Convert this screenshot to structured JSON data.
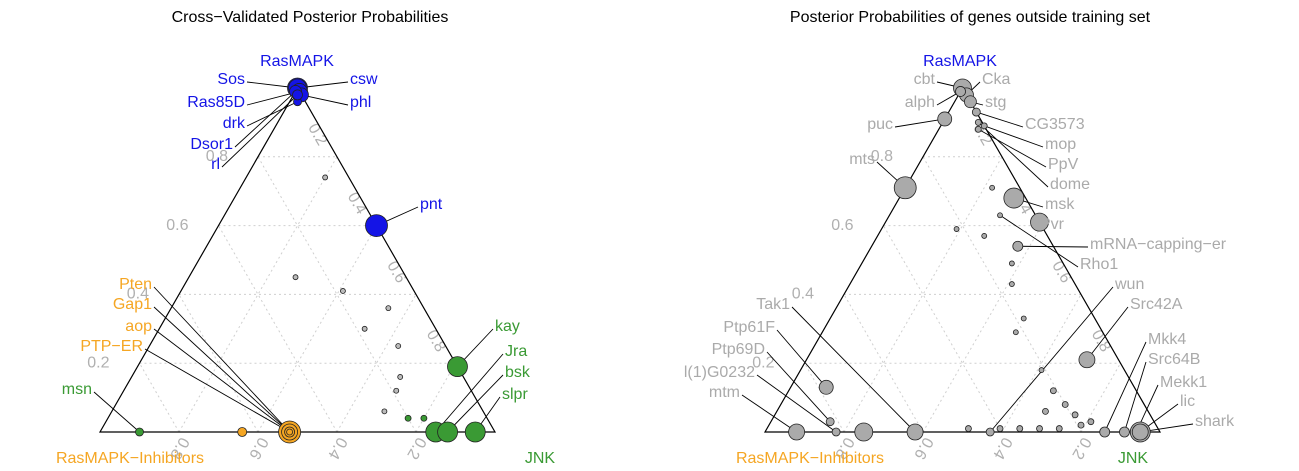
{
  "chart_data": [
    {
      "type": "ternary",
      "title": "Cross−Validated Posterior Probabilities",
      "vertices": [
        {
          "label": "RasMAPK",
          "color": "#1414e6"
        },
        {
          "label": "RasMAPK−Inhibitors",
          "color": "#f5a623"
        },
        {
          "label": "JNK",
          "color": "#3a9a34"
        }
      ],
      "ticks": [
        0.2,
        0.4,
        0.6,
        0.8
      ],
      "grid": true,
      "points": [
        {
          "label": "Sos",
          "a": 1,
          "b": 0,
          "c": 0,
          "size": 10,
          "color": "#1414e6"
        },
        {
          "label": "csw",
          "a": 1,
          "b": 0,
          "c": 0,
          "size": 9,
          "color": "#1414e6"
        },
        {
          "label": "Ras85D",
          "a": 0.99,
          "b": 0,
          "c": 0.01,
          "size": 8,
          "color": "#1414e6"
        },
        {
          "label": "phl",
          "a": 0.98,
          "b": 0,
          "c": 0.02,
          "size": 7,
          "color": "#1414e6"
        },
        {
          "label": "drk",
          "a": 0.96,
          "b": 0.02,
          "c": 0.02,
          "size": 4,
          "color": "#1414e6"
        },
        {
          "label": "Dsor1",
          "a": 0.99,
          "b": 0.01,
          "c": 0,
          "size": 6,
          "color": "#1414e6"
        },
        {
          "label": "rl",
          "a": 0.98,
          "b": 0.01,
          "c": 0.01,
          "size": 5,
          "color": "#1414e6"
        },
        {
          "label": "pnt",
          "a": 0.6,
          "b": 0,
          "c": 0.4,
          "size": 11,
          "color": "#1414e6"
        },
        {
          "label": "kay",
          "a": 0.19,
          "b": 0,
          "c": 0.81,
          "size": 10,
          "color": "#3a9a34"
        },
        {
          "label": "Jra",
          "a": 0,
          "b": 0.15,
          "c": 0.85,
          "size": 10,
          "color": "#3a9a34"
        },
        {
          "label": "bsk",
          "a": 0,
          "b": 0.12,
          "c": 0.88,
          "size": 10,
          "color": "#3a9a34"
        },
        {
          "label": "slpr",
          "a": 0,
          "b": 0.05,
          "c": 0.95,
          "size": 10,
          "color": "#3a9a34"
        },
        {
          "label": "msn",
          "a": 0,
          "b": 0.9,
          "c": 0.1,
          "size": 4,
          "color": "#3a9a34"
        },
        {
          "label": "Pten",
          "a": 0,
          "b": 0.52,
          "c": 0.48,
          "size": 11,
          "color": "#f5a623"
        },
        {
          "label": "Gap1",
          "a": 0,
          "b": 0.52,
          "c": 0.48,
          "size": 8,
          "color": "#f5a623"
        },
        {
          "label": "aop",
          "a": 0,
          "b": 0.52,
          "c": 0.48,
          "size": 5,
          "color": "#f5a623"
        },
        {
          "label": "PTP−ER",
          "a": 0,
          "b": 0.52,
          "c": 0.48,
          "size": 3,
          "color": "#f5a623"
        },
        {
          "a": 0,
          "b": 0.64,
          "c": 0.36,
          "size": 4.5,
          "color": "#f5a623"
        },
        {
          "a": 0.74,
          "b": 0.06,
          "c": 0.2,
          "size": 2.5,
          "color": "#bbbbbb"
        },
        {
          "a": 0.45,
          "b": 0.28,
          "c": 0.27,
          "size": 2.5,
          "color": "#bbbbbb"
        },
        {
          "a": 0.41,
          "b": 0.18,
          "c": 0.41,
          "size": 2.5,
          "color": "#bbbbbb"
        },
        {
          "a": 0.36,
          "b": 0.09,
          "c": 0.55,
          "size": 2.5,
          "color": "#bbbbbb"
        },
        {
          "a": 0.3,
          "b": 0.18,
          "c": 0.52,
          "size": 2.5,
          "color": "#bbbbbb"
        },
        {
          "a": 0.25,
          "b": 0.12,
          "c": 0.63,
          "size": 2.5,
          "color": "#bbbbbb"
        },
        {
          "a": 0.16,
          "b": 0.16,
          "c": 0.68,
          "size": 2.5,
          "color": "#bbbbbb"
        },
        {
          "a": 0.12,
          "b": 0.19,
          "c": 0.69,
          "size": 2.5,
          "color": "#bbbbbb"
        },
        {
          "a": 0.06,
          "b": 0.25,
          "c": 0.69,
          "size": 2.5,
          "color": "#bbbbbb"
        },
        {
          "a": 0.04,
          "b": 0.2,
          "c": 0.76,
          "size": 3,
          "color": "#3a9a34"
        },
        {
          "a": 0.04,
          "b": 0.16,
          "c": 0.8,
          "size": 3,
          "color": "#3a9a34"
        }
      ]
    },
    {
      "type": "ternary",
      "title": "Posterior Probabilities of genes outside training set",
      "vertices": [
        {
          "label": "RasMAPK",
          "color": "#1414e6"
        },
        {
          "label": "RasMAPK−Inhibitors",
          "color": "#f5a623"
        },
        {
          "label": "JNK",
          "color": "#3a9a34"
        }
      ],
      "ticks": [
        0.2,
        0.4,
        0.6,
        0.8
      ],
      "grid": true,
      "points": [
        {
          "label": "cbt",
          "a": 1,
          "b": 0,
          "c": 0,
          "size": 9,
          "color": "#aaaaaa"
        },
        {
          "label": "Cka",
          "a": 0.98,
          "b": 0,
          "c": 0.02,
          "size": 7,
          "color": "#aaaaaa"
        },
        {
          "label": "alph",
          "a": 0.99,
          "b": 0.01,
          "c": 0,
          "size": 5,
          "color": "#aaaaaa"
        },
        {
          "label": "stg",
          "a": 0.96,
          "b": 0,
          "c": 0.04,
          "size": 6,
          "color": "#aaaaaa"
        },
        {
          "label": "puc",
          "a": 0.91,
          "b": 0.09,
          "c": 0,
          "size": 7,
          "color": "#aaaaaa"
        },
        {
          "label": "CG3573",
          "a": 0.93,
          "b": 0,
          "c": 0.07,
          "size": 4,
          "color": "#aaaaaa"
        },
        {
          "label": "mop",
          "a": 0.89,
          "b": 0,
          "c": 0.11,
          "size": 3,
          "color": "#aaaaaa"
        },
        {
          "label": "PpV",
          "a": 0.88,
          "b": 0.02,
          "c": 0.1,
          "size": 3,
          "color": "#aaaaaa"
        },
        {
          "label": "dome",
          "a": 0.9,
          "b": 0.01,
          "c": 0.09,
          "size": 3,
          "color": "#aaaaaa"
        },
        {
          "label": "msk",
          "a": 0.68,
          "b": 0.03,
          "c": 0.29,
          "size": 10,
          "color": "#aaaaaa"
        },
        {
          "label": "Pvr",
          "a": 0.61,
          "b": 0,
          "c": 0.39,
          "size": 9,
          "color": "#aaaaaa"
        },
        {
          "label": "mRNA−capping−er",
          "a": 0.54,
          "b": 0.09,
          "c": 0.37,
          "size": 5,
          "color": "#aaaaaa"
        },
        {
          "label": "Rho1",
          "a": 0.63,
          "b": 0.09,
          "c": 0.28,
          "size": 2.5,
          "color": "#aaaaaa"
        },
        {
          "label": "wun",
          "a": 0,
          "b": 0.43,
          "c": 0.57,
          "size": 4,
          "color": "#aaaaaa"
        },
        {
          "label": "mts",
          "a": 0.71,
          "b": 0.29,
          "c": 0,
          "size": 11,
          "color": "#aaaaaa"
        },
        {
          "label": "Tak1",
          "a": 0,
          "b": 0.62,
          "c": 0.38,
          "size": 8,
          "color": "#aaaaaa"
        },
        {
          "label": "Ptp61F",
          "a": 0.13,
          "b": 0.78,
          "c": 0.09,
          "size": 7,
          "color": "#aaaaaa"
        },
        {
          "label": "Ptp69D",
          "a": 0.03,
          "b": 0.82,
          "c": 0.15,
          "size": 4,
          "color": "#aaaaaa"
        },
        {
          "label": "l(1)G0232",
          "a": 0,
          "b": 0.82,
          "c": 0.18,
          "size": 4,
          "color": "#aaaaaa"
        },
        {
          "label": "mtm",
          "a": 0,
          "b": 0.92,
          "c": 0.08,
          "size": 8,
          "color": "#aaaaaa"
        },
        {
          "label": "Src42A",
          "a": 0.21,
          "b": 0.08,
          "c": 0.71,
          "size": 8,
          "color": "#aaaaaa"
        },
        {
          "label": "Mkk4",
          "a": 0,
          "b": 0.14,
          "c": 0.86,
          "size": 5,
          "color": "#aaaaaa"
        },
        {
          "label": "Src64B",
          "a": 0,
          "b": 0.09,
          "c": 0.91,
          "size": 5,
          "color": "#aaaaaa"
        },
        {
          "label": "Mekk1",
          "a": 0,
          "b": 0.06,
          "c": 0.94,
          "size": 6,
          "color": "#aaaaaa"
        },
        {
          "label": "shark",
          "a": 0,
          "b": 0.05,
          "c": 0.95,
          "size": 10,
          "color": "#aaaaaa"
        },
        {
          "label": "lic",
          "a": 0,
          "b": 0.05,
          "c": 0.95,
          "size": 8,
          "color": "#aaaaaa"
        },
        {
          "a": 0,
          "b": 0.75,
          "c": 0.25,
          "size": 9,
          "color": "#aaaaaa"
        },
        {
          "a": 0.71,
          "b": 0.07,
          "c": 0.22,
          "size": 2.5,
          "color": "#aaaaaa"
        },
        {
          "a": 0.59,
          "b": 0.22,
          "c": 0.19,
          "size": 2.5,
          "color": "#aaaaaa"
        },
        {
          "a": 0.57,
          "b": 0.16,
          "c": 0.27,
          "size": 2.5,
          "color": "#aaaaaa"
        },
        {
          "a": 0.49,
          "b": 0.13,
          "c": 0.38,
          "size": 2.5,
          "color": "#aaaaaa"
        },
        {
          "a": 0.43,
          "b": 0.16,
          "c": 0.41,
          "size": 2.5,
          "color": "#aaaaaa"
        },
        {
          "a": 0.33,
          "b": 0.18,
          "c": 0.49,
          "size": 2.5,
          "color": "#aaaaaa"
        },
        {
          "a": 0.29,
          "b": 0.22,
          "c": 0.49,
          "size": 2.5,
          "color": "#aaaaaa"
        },
        {
          "a": 0.18,
          "b": 0.21,
          "c": 0.61,
          "size": 2.5,
          "color": "#aaaaaa"
        },
        {
          "a": 0.12,
          "b": 0.21,
          "c": 0.67,
          "size": 3,
          "color": "#aaaaaa"
        },
        {
          "a": 0.08,
          "b": 0.2,
          "c": 0.72,
          "size": 3,
          "color": "#aaaaaa"
        },
        {
          "a": 0.06,
          "b": 0.26,
          "c": 0.68,
          "size": 3,
          "color": "#aaaaaa"
        },
        {
          "a": 0.05,
          "b": 0.19,
          "c": 0.76,
          "size": 3,
          "color": "#aaaaaa"
        },
        {
          "a": 0.03,
          "b": 0.16,
          "c": 0.81,
          "size": 3,
          "color": "#aaaaaa"
        },
        {
          "a": 0.01,
          "b": 0.48,
          "c": 0.51,
          "size": 3,
          "color": "#aaaaaa"
        },
        {
          "a": 0.01,
          "b": 0.4,
          "c": 0.59,
          "size": 3,
          "color": "#aaaaaa"
        },
        {
          "a": 0.01,
          "b": 0.35,
          "c": 0.64,
          "size": 3,
          "color": "#aaaaaa"
        },
        {
          "a": 0.01,
          "b": 0.3,
          "c": 0.69,
          "size": 3,
          "color": "#aaaaaa"
        },
        {
          "a": 0.01,
          "b": 0.25,
          "c": 0.74,
          "size": 3,
          "color": "#aaaaaa"
        },
        {
          "a": 0.02,
          "b": 0.19,
          "c": 0.79,
          "size": 3,
          "color": "#aaaaaa"
        }
      ]
    }
  ]
}
